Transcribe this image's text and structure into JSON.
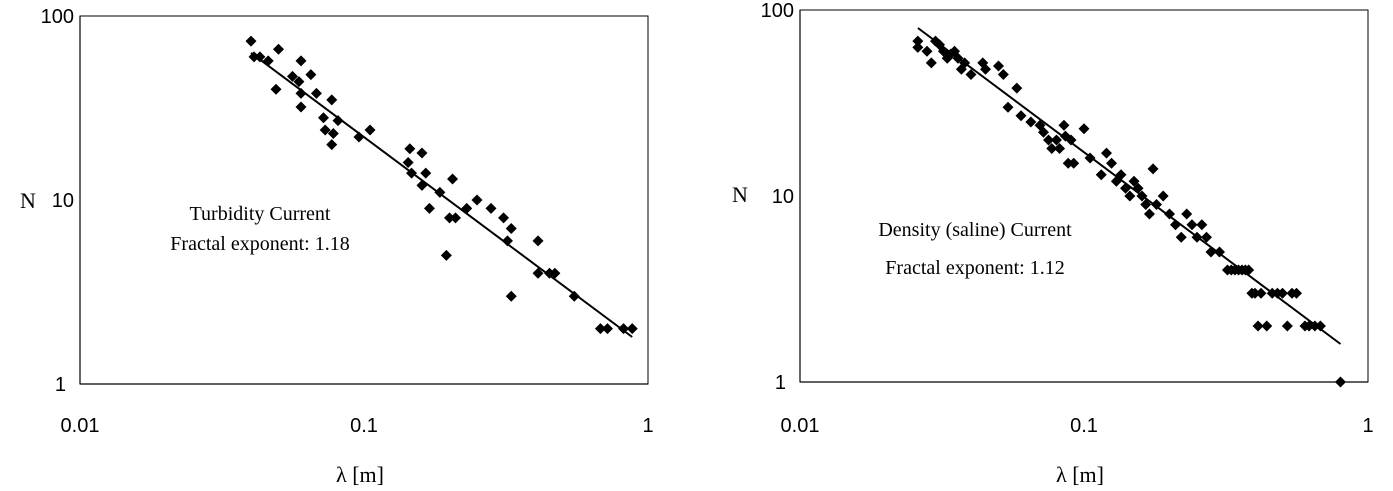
{
  "chart_data": [
    {
      "type": "scatter",
      "scale": "log-log",
      "xlabel": "λ [m]",
      "ylabel": "N",
      "xlim": [
        0.01,
        1
      ],
      "ylim": [
        1,
        100
      ],
      "x_ticks": [
        "0.01",
        "0.1",
        "1"
      ],
      "y_ticks": [
        "1",
        "10",
        "100"
      ],
      "grid": false,
      "annotation": [
        "Turbidity Current",
        "Fractal exponent: 1.18"
      ],
      "fit_line": {
        "x": [
          0.04,
          0.88
        ],
        "y": [
          63,
          1.8
        ]
      },
      "points": [
        [
          0.04,
          73
        ],
        [
          0.041,
          60
        ],
        [
          0.043,
          60
        ],
        [
          0.046,
          57
        ],
        [
          0.05,
          66
        ],
        [
          0.049,
          40
        ],
        [
          0.056,
          47
        ],
        [
          0.06,
          57
        ],
        [
          0.059,
          44
        ],
        [
          0.06,
          38
        ],
        [
          0.06,
          32
        ],
        [
          0.065,
          48
        ],
        [
          0.068,
          38
        ],
        [
          0.072,
          28
        ],
        [
          0.073,
          24
        ],
        [
          0.077,
          35
        ],
        [
          0.077,
          20
        ],
        [
          0.078,
          23
        ],
        [
          0.081,
          27
        ],
        [
          0.096,
          22
        ],
        [
          0.105,
          24
        ],
        [
          0.145,
          19
        ],
        [
          0.143,
          16
        ],
        [
          0.147,
          14
        ],
        [
          0.16,
          18
        ],
        [
          0.16,
          12
        ],
        [
          0.165,
          14
        ],
        [
          0.17,
          9
        ],
        [
          0.185,
          11
        ],
        [
          0.195,
          5
        ],
        [
          0.2,
          8
        ],
        [
          0.205,
          13
        ],
        [
          0.21,
          8
        ],
        [
          0.23,
          9
        ],
        [
          0.25,
          10
        ],
        [
          0.28,
          9
        ],
        [
          0.31,
          8
        ],
        [
          0.32,
          6
        ],
        [
          0.33,
          7
        ],
        [
          0.33,
          3
        ],
        [
          0.41,
          6
        ],
        [
          0.41,
          4
        ],
        [
          0.45,
          4
        ],
        [
          0.47,
          4
        ],
        [
          0.55,
          3
        ],
        [
          0.68,
          2
        ],
        [
          0.72,
          2
        ],
        [
          0.82,
          2
        ],
        [
          0.88,
          2
        ]
      ]
    },
    {
      "type": "scatter",
      "scale": "log-log",
      "xlabel": "λ [m]",
      "ylabel": "N",
      "xlim": [
        0.01,
        1
      ],
      "ylim": [
        1,
        100
      ],
      "x_ticks": [
        "0.01",
        "0.1",
        "1"
      ],
      "y_ticks": [
        "1",
        "10",
        "100"
      ],
      "grid": false,
      "annotation": [
        "Density (saline) Current",
        "Fractal exponent: 1.12"
      ],
      "fit_line": {
        "x": [
          0.026,
          0.8
        ],
        "y": [
          80,
          1.6
        ]
      },
      "points": [
        [
          0.026,
          68
        ],
        [
          0.026,
          63
        ],
        [
          0.028,
          60
        ],
        [
          0.029,
          52
        ],
        [
          0.03,
          68
        ],
        [
          0.031,
          65
        ],
        [
          0.032,
          60
        ],
        [
          0.033,
          55
        ],
        [
          0.034,
          58
        ],
        [
          0.035,
          60
        ],
        [
          0.036,
          55
        ],
        [
          0.037,
          48
        ],
        [
          0.038,
          52
        ],
        [
          0.04,
          45
        ],
        [
          0.044,
          52
        ],
        [
          0.045,
          48
        ],
        [
          0.05,
          50
        ],
        [
          0.052,
          45
        ],
        [
          0.054,
          30
        ],
        [
          0.058,
          38
        ],
        [
          0.06,
          27
        ],
        [
          0.065,
          25
        ],
        [
          0.07,
          24
        ],
        [
          0.072,
          22
        ],
        [
          0.075,
          20
        ],
        [
          0.077,
          18
        ],
        [
          0.08,
          20
        ],
        [
          0.082,
          18
        ],
        [
          0.085,
          24
        ],
        [
          0.086,
          21
        ],
        [
          0.088,
          15
        ],
        [
          0.09,
          20
        ],
        [
          0.092,
          15
        ],
        [
          0.1,
          23
        ],
        [
          0.105,
          16
        ],
        [
          0.115,
          13
        ],
        [
          0.12,
          17
        ],
        [
          0.125,
          15
        ],
        [
          0.13,
          12
        ],
        [
          0.135,
          13
        ],
        [
          0.14,
          11
        ],
        [
          0.145,
          10
        ],
        [
          0.15,
          12
        ],
        [
          0.155,
          11
        ],
        [
          0.16,
          10
        ],
        [
          0.165,
          9
        ],
        [
          0.17,
          8
        ],
        [
          0.175,
          14
        ],
        [
          0.18,
          9
        ],
        [
          0.19,
          10
        ],
        [
          0.2,
          8
        ],
        [
          0.21,
          7
        ],
        [
          0.22,
          6
        ],
        [
          0.23,
          8
        ],
        [
          0.24,
          7
        ],
        [
          0.25,
          6
        ],
        [
          0.26,
          7
        ],
        [
          0.27,
          6
        ],
        [
          0.28,
          5
        ],
        [
          0.3,
          5
        ],
        [
          0.32,
          4
        ],
        [
          0.33,
          4
        ],
        [
          0.34,
          4
        ],
        [
          0.35,
          4
        ],
        [
          0.36,
          4
        ],
        [
          0.37,
          4
        ],
        [
          0.38,
          4
        ],
        [
          0.39,
          3
        ],
        [
          0.4,
          3
        ],
        [
          0.41,
          2
        ],
        [
          0.42,
          3
        ],
        [
          0.44,
          2
        ],
        [
          0.46,
          3
        ],
        [
          0.48,
          3
        ],
        [
          0.5,
          3
        ],
        [
          0.52,
          2
        ],
        [
          0.54,
          3
        ],
        [
          0.56,
          3
        ],
        [
          0.6,
          2
        ],
        [
          0.62,
          2
        ],
        [
          0.65,
          2
        ],
        [
          0.68,
          2
        ],
        [
          0.8,
          1
        ]
      ]
    }
  ]
}
